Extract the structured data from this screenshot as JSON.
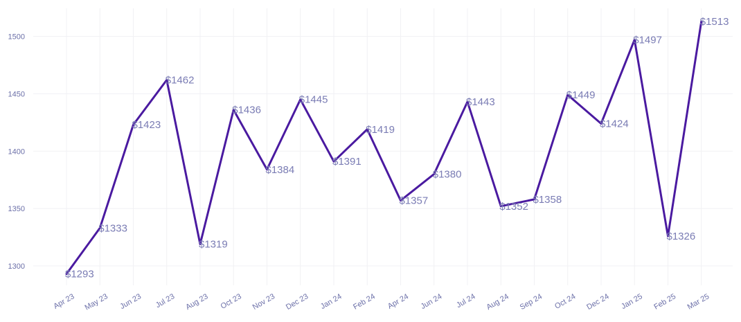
{
  "chart_data": {
    "type": "line",
    "title": "",
    "xlabel": "",
    "ylabel": "",
    "categories": [
      "Apr 23",
      "May 23",
      "Jun 23",
      "Jul 23",
      "Aug 23",
      "Oct 23",
      "Nov 23",
      "Dec 23",
      "Jan 24",
      "Feb 24",
      "Apr 24",
      "Jun 24",
      "Jul 24",
      "Aug 24",
      "Sep 24",
      "Oct 24",
      "Dec 24",
      "Jan 25",
      "Feb 25",
      "Mar 25"
    ],
    "values": [
      1293,
      1333,
      1423,
      1462,
      1319,
      1436,
      1384,
      1445,
      1391,
      1419,
      1357,
      1380,
      1443,
      1352,
      1358,
      1449,
      1424,
      1497,
      1326,
      1513
    ],
    "data_labels": [
      "$1293",
      "$1333",
      "$1423",
      "$1462",
      "$1319",
      "$1436",
      "$1384",
      "$1445",
      "$1391",
      "$1419",
      "$1357",
      "$1380",
      "$1443",
      "$1352",
      "$1358",
      "$1449",
      "$1424",
      "$1497",
      "$1326",
      "$1513"
    ],
    "y_ticks": [
      "1300",
      "1350",
      "1400",
      "1450",
      "1500"
    ],
    "ylim": [
      1280,
      1520
    ],
    "grid": true,
    "line_color": "#4a1aa0",
    "label_color": "#7a7cb4",
    "tick_color": "#6b6fa8"
  }
}
